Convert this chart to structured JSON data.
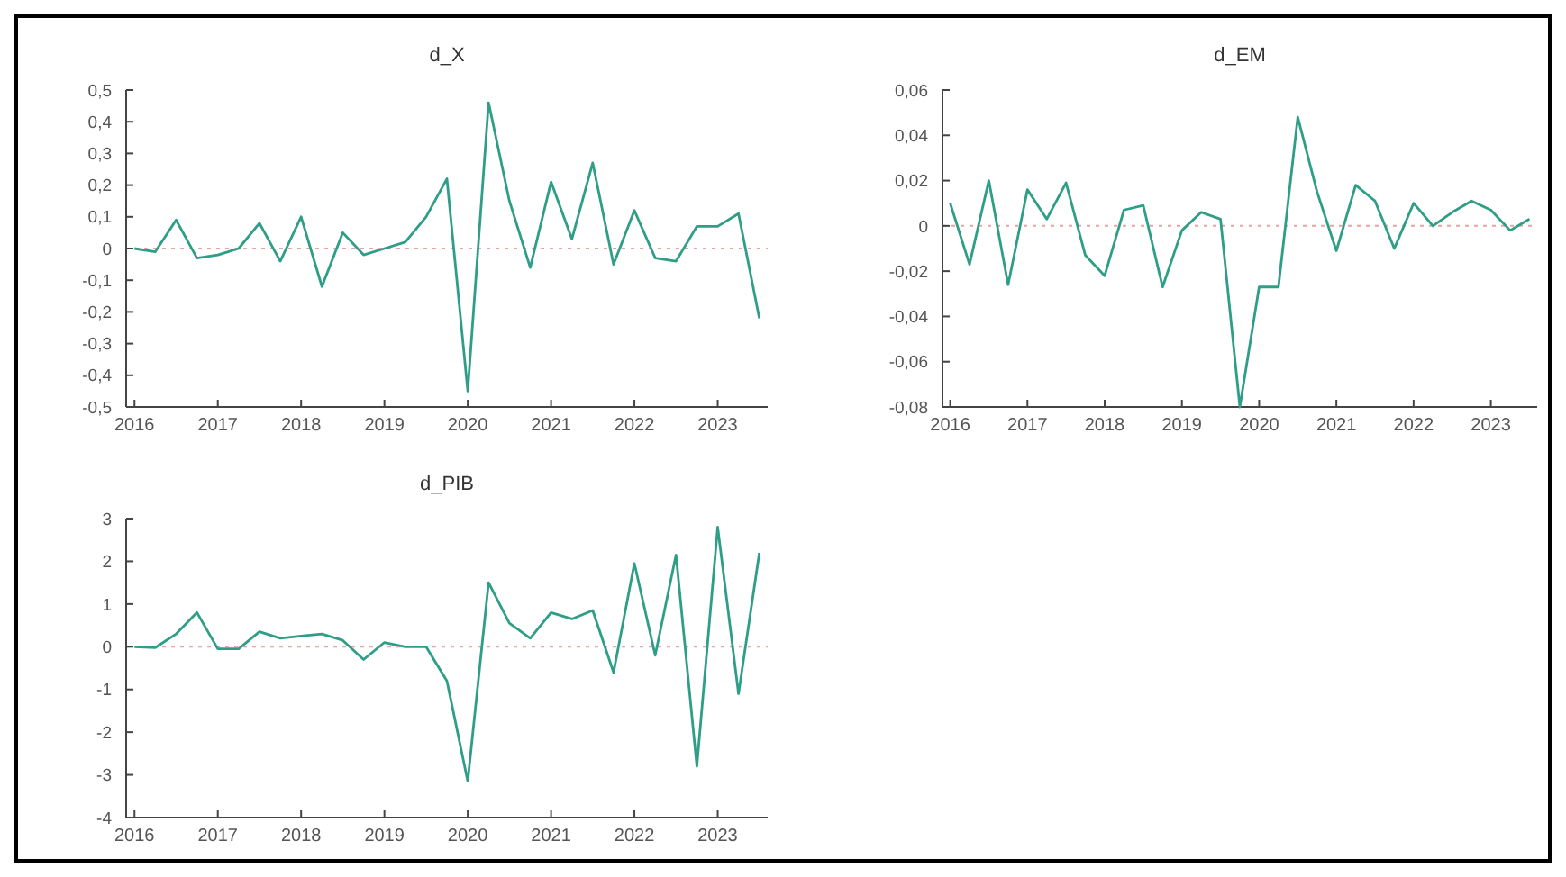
{
  "chart_data": [
    {
      "type": "line",
      "title": "d_X",
      "x": [
        2016,
        2016.25,
        2016.5,
        2016.75,
        2017,
        2017.25,
        2017.5,
        2017.75,
        2018,
        2018.25,
        2018.5,
        2018.75,
        2019,
        2019.25,
        2019.5,
        2019.75,
        2020,
        2020.25,
        2020.5,
        2020.75,
        2021,
        2021.25,
        2021.5,
        2021.75,
        2022,
        2022.25,
        2022.5,
        2022.75,
        2023,
        2023.25,
        2023.5
      ],
      "series": [
        {
          "color": "#2e9e86",
          "values": [
            0,
            -0.01,
            0.09,
            -0.03,
            -0.02,
            0,
            0.08,
            -0.04,
            0.1,
            -0.12,
            0.05,
            -0.02,
            0,
            0.02,
            0.1,
            0.22,
            -0.45,
            0.46,
            0.15,
            -0.06,
            0.21,
            0.03,
            0.27,
            -0.05,
            0.12,
            -0.03,
            -0.04,
            0.07,
            0.07,
            0.11,
            -0.22
          ]
        }
      ],
      "xlim": [
        2015.9,
        2023.6
      ],
      "xticks": [
        2016,
        2017,
        2018,
        2019,
        2020,
        2021,
        2022,
        2023
      ],
      "ylim": [
        -0.5,
        0.5
      ],
      "yticks": [
        {
          "value": -0.5,
          "label": "-0,5"
        },
        {
          "value": -0.4,
          "label": "-0,4"
        },
        {
          "value": -0.3,
          "label": "-0,3"
        },
        {
          "value": -0.2,
          "label": "-0,2"
        },
        {
          "value": -0.1,
          "label": "-0,1"
        },
        0,
        {
          "value": 0.1,
          "label": "0,1"
        },
        {
          "value": 0.2,
          "label": "0,2"
        },
        {
          "value": 0.3,
          "label": "0,3"
        },
        {
          "value": 0.4,
          "label": "0,4"
        },
        {
          "value": 0.5,
          "label": "0,5"
        }
      ],
      "ref_lines": [
        {
          "axis": "y",
          "value": 0,
          "color": "#e8a4a4",
          "line_style": "dotted"
        }
      ],
      "grid": false
    },
    {
      "type": "line",
      "title": "d_EM",
      "x": [
        2016,
        2016.25,
        2016.5,
        2016.75,
        2017,
        2017.25,
        2017.5,
        2017.75,
        2018,
        2018.25,
        2018.5,
        2018.75,
        2019,
        2019.25,
        2019.5,
        2019.75,
        2020,
        2020.25,
        2020.5,
        2020.75,
        2021,
        2021.25,
        2021.5,
        2021.75,
        2022,
        2022.25,
        2022.5,
        2022.75,
        2023,
        2023.25,
        2023.5
      ],
      "series": [
        {
          "color": "#2e9e86",
          "values": [
            0.01,
            -0.017,
            0.02,
            -0.026,
            0.016,
            0.003,
            0.019,
            -0.013,
            -0.022,
            0.007,
            0.009,
            -0.027,
            -0.002,
            0.006,
            0.003,
            -0.08,
            -0.027,
            -0.027,
            0.048,
            0.015,
            -0.011,
            0.018,
            0.011,
            -0.01,
            0.01,
            0,
            0.006,
            0.011,
            0.007,
            -0.002,
            0.003
          ]
        }
      ],
      "xlim": [
        2015.9,
        2023.6
      ],
      "xticks": [
        2016,
        2017,
        2018,
        2019,
        2020,
        2021,
        2022,
        2023
      ],
      "ylim": [
        -0.08,
        0.06
      ],
      "yticks": [
        {
          "value": -0.08,
          "label": "-0,08"
        },
        {
          "value": -0.06,
          "label": "-0,06"
        },
        {
          "value": -0.04,
          "label": "-0,04"
        },
        {
          "value": -0.02,
          "label": "-0,02"
        },
        0,
        {
          "value": 0.02,
          "label": "0,02"
        },
        {
          "value": 0.04,
          "label": "0,04"
        },
        {
          "value": 0.06,
          "label": "0,06"
        }
      ],
      "ref_lines": [
        {
          "axis": "y",
          "value": 0,
          "color": "#e8a4a4",
          "line_style": "dotted"
        }
      ],
      "grid": false
    },
    {
      "type": "line",
      "title": "d_PIB",
      "x": [
        2016,
        2016.25,
        2016.5,
        2016.75,
        2017,
        2017.25,
        2017.5,
        2017.75,
        2018,
        2018.25,
        2018.5,
        2018.75,
        2019,
        2019.25,
        2019.5,
        2019.75,
        2020,
        2020.25,
        2020.5,
        2020.75,
        2021,
        2021.25,
        2021.5,
        2021.75,
        2022,
        2022.25,
        2022.5,
        2022.75,
        2023,
        2023.25,
        2023.5
      ],
      "series": [
        {
          "color": "#2e9e86",
          "values": [
            0,
            -0.02,
            0.3,
            0.8,
            -0.05,
            -0.05,
            0.35,
            0.2,
            0.25,
            0.3,
            0.15,
            -0.3,
            0.1,
            0,
            0,
            -0.8,
            -3.15,
            1.5,
            0.55,
            0.2,
            0.8,
            0.65,
            0.85,
            -0.6,
            1.95,
            -0.2,
            2.15,
            -2.8,
            2.8,
            -1.1,
            2.2
          ]
        }
      ],
      "xlim": [
        2015.9,
        2023.6
      ],
      "xticks": [
        2016,
        2017,
        2018,
        2019,
        2020,
        2021,
        2022,
        2023
      ],
      "ylim": [
        -4,
        3
      ],
      "yticks": [
        -4,
        -3,
        -2,
        -1,
        0,
        1,
        2,
        3
      ],
      "ref_lines": [
        {
          "axis": "y",
          "value": 0,
          "color": "#e8a4a4",
          "line_style": "dotted"
        }
      ],
      "grid": false
    }
  ]
}
